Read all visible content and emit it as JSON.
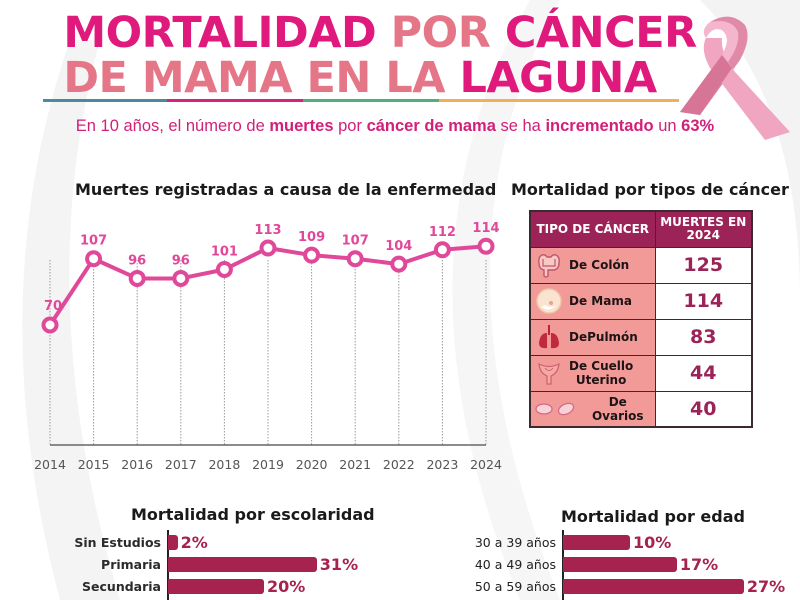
{
  "header": {
    "title_line1": [
      {
        "text": "MORTALIDAD ",
        "color": "magenta"
      },
      {
        "text": "POR ",
        "color": "salmon"
      },
      {
        "text": "CÁNCER",
        "color": "magenta"
      }
    ],
    "title_line2": [
      {
        "text": "DE MAMA EN LA ",
        "color": "salmon"
      },
      {
        "text": "LAGUNA",
        "color": "magenta"
      }
    ],
    "subtitle": [
      {
        "text": "En 10 años, el número de ",
        "bold": false
      },
      {
        "text": "muertes",
        "bold": true
      },
      {
        "text": " por ",
        "bold": false
      },
      {
        "text": "cáncer de mama",
        "bold": true
      },
      {
        "text": " se ha ",
        "bold": false
      },
      {
        "text": "incrementado",
        "bold": true
      },
      {
        "text": " un ",
        "bold": false
      },
      {
        "text": "63%",
        "bold": true
      }
    ],
    "rule_colors": [
      "#4a8aa0",
      "#d4237c",
      "#4fb07e",
      "#f0b05a"
    ],
    "ribbon_icon": "pink-ribbon-icon"
  },
  "colors": {
    "magenta": "#e0197d",
    "salmon": "#e47688",
    "line": "#e0489a",
    "bar": "#a6234f",
    "table_header": "#9c2358",
    "table_type_bg": "#f19a97"
  },
  "chart_data": [
    {
      "type": "line",
      "title": "Muertes registradas a causa de la enfermedad",
      "x": [
        "2014",
        "2015",
        "2016",
        "2017",
        "2018",
        "2019",
        "2020",
        "2021",
        "2022",
        "2023",
        "2024"
      ],
      "values": [
        70,
        107,
        96,
        96,
        101,
        113,
        109,
        107,
        104,
        112,
        114
      ],
      "xlabel": "",
      "ylabel": "",
      "ylim": [
        0,
        120
      ],
      "grid": "vertical-dotted",
      "data_labels": true
    },
    {
      "type": "table",
      "title": "Mortalidad por tipos de cáncer",
      "columns": [
        "TIPO DE CÁNCER",
        "MUERTES EN 2024"
      ],
      "rows": [
        {
          "icon": "colon-icon",
          "label": "De Colón",
          "value": 125
        },
        {
          "icon": "breast-icon",
          "label": "De Mama",
          "value": 114
        },
        {
          "icon": "lungs-icon",
          "label": "DePulmón",
          "value": 83
        },
        {
          "icon": "uterus-icon",
          "label": "De Cuello Uterino",
          "value": 44
        },
        {
          "icon": "ovaries-icon",
          "label": "De Ovarios",
          "value": 40
        }
      ]
    },
    {
      "type": "bar",
      "orientation": "horizontal",
      "title": "Mortalidad por escolaridad",
      "categories": [
        "Sin Estudios",
        "Primaria",
        "Secundaria"
      ],
      "values": [
        2,
        31,
        20
      ],
      "unit": "%"
    },
    {
      "type": "bar",
      "orientation": "horizontal",
      "title": "Mortalidad por edad",
      "categories": [
        "30 a 39 años",
        "40 a 49 años",
        "50 a 59 años"
      ],
      "values": [
        10,
        17,
        27
      ],
      "unit": "%"
    }
  ]
}
